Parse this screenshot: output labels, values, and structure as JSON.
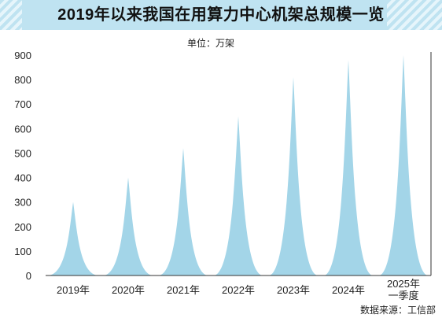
{
  "chart_data": {
    "type": "area",
    "title": "2019年以来我国在用算力中心机架总规模一览",
    "unit": "单位：万架",
    "source": "数据来源：工信部",
    "categories": [
      "2019年",
      "2020年",
      "2021年",
      "2022年",
      "2023年",
      "2024年",
      "2025年\n一季度"
    ],
    "series": [
      {
        "values": [
          300,
          400,
          520,
          650,
          810,
          880,
          900
        ]
      }
    ],
    "ylim": [
      0,
      900
    ],
    "yticks": [
      0,
      100,
      200,
      300,
      400,
      500,
      600,
      700,
      800,
      900
    ],
    "grid": false,
    "colors": {
      "area": "#a3d5e8",
      "title_bar": "#bfe3f1"
    }
  }
}
